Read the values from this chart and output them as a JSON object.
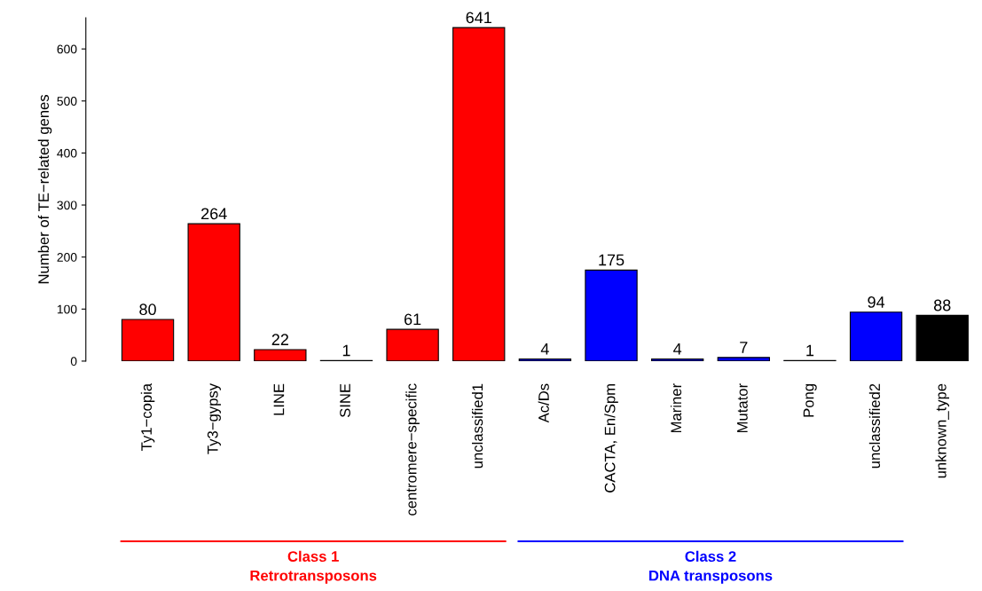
{
  "chart_data": {
    "type": "bar",
    "ylabel": "Number of TE−related genes",
    "categories": [
      "Ty1−copia",
      "Ty3−gypsy",
      "LINE",
      "SINE",
      "centromere−specific",
      "unclassified1",
      "Ac/Ds",
      "CACTA, En/Spm",
      "Mariner",
      "Mutator",
      "Pong",
      "unclassified2",
      "unknown_type"
    ],
    "values": [
      80,
      264,
      22,
      1,
      61,
      641,
      4,
      175,
      4,
      7,
      1,
      94,
      88
    ],
    "colors": [
      "#ff0000",
      "#ff0000",
      "#ff0000",
      "#ff0000",
      "#ff0000",
      "#ff0000",
      "#0000ff",
      "#0000ff",
      "#0000ff",
      "#0000ff",
      "#0000ff",
      "#0000ff",
      "#000000"
    ],
    "data_labels": true,
    "ylim": [
      0,
      660
    ],
    "yticks": [
      0,
      100,
      200,
      300,
      400,
      500,
      600
    ],
    "grid": false,
    "legend": false,
    "annotations": [
      "Class 1\nRetrotransposons",
      "Class 2\nDNA transposons"
    ]
  }
}
